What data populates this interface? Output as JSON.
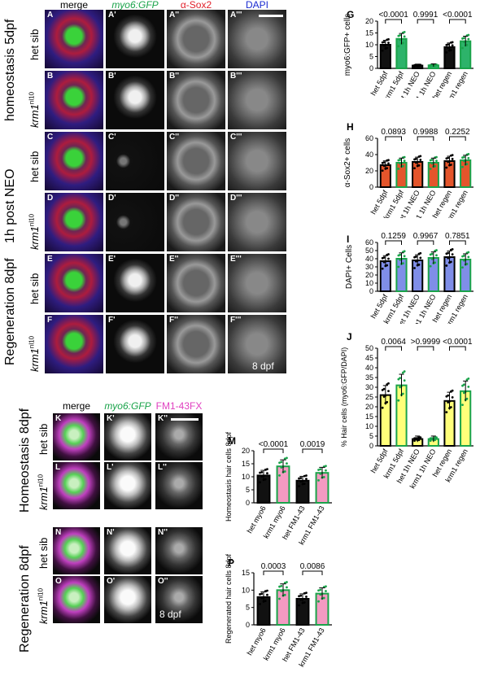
{
  "top": {
    "col_headers": [
      "merge",
      "myo6:GFP",
      "α-Sox2",
      "DAPI"
    ],
    "col_colors": [
      "#000000",
      "#1aa34a",
      "#e0202a",
      "#1a2bd0"
    ],
    "rows": [
      {
        "labels": [
          "A",
          "A'",
          "A''",
          "A'''"
        ],
        "row_label": "het sib"
      },
      {
        "labels": [
          "B",
          "B'",
          "B''",
          "B'''"
        ],
        "row_label": "krm1nl10"
      },
      {
        "labels": [
          "C",
          "C'",
          "C''",
          "C'''"
        ],
        "row_label": "het sib"
      },
      {
        "labels": [
          "D",
          "D'",
          "D''",
          "D'''"
        ],
        "row_label": "krm1nl10"
      },
      {
        "labels": [
          "E",
          "E'",
          "E''",
          "E'''"
        ],
        "row_label": "het sib"
      },
      {
        "labels": [
          "F",
          "F'",
          "F''",
          "F'''"
        ],
        "row_label": "krm1nl10"
      }
    ],
    "groups": [
      "homeostasis 5dpf",
      "1h post NEO",
      "Regeneration 8dpf"
    ],
    "stage": "8 dpf"
  },
  "bottom": {
    "col_headers": [
      "merge",
      "myo6:GFP",
      "FM1-43FX"
    ],
    "col_colors": [
      "#000000",
      "#1aa34a",
      "#e040c0"
    ],
    "rows": [
      {
        "labels": [
          "K",
          "K'",
          "K''"
        ],
        "row_label": "het sib"
      },
      {
        "labels": [
          "L",
          "L'",
          "L''"
        ],
        "row_label": "krm1nl10"
      },
      {
        "labels": [
          "N",
          "N'",
          "N''"
        ],
        "row_label": "het sib"
      },
      {
        "labels": [
          "O",
          "O'",
          "O''"
        ],
        "row_label": "krm1nl10"
      }
    ],
    "groups": [
      "Homeostasis 8dpf",
      "Regeneration 8dpf"
    ],
    "stage": "8 dpf"
  },
  "chart_data": [
    {
      "panel": "G",
      "type": "bar",
      "ylabel": "myo6:GFP+ cells",
      "ylim": [
        0,
        20
      ],
      "yticks": [
        0,
        5,
        10,
        15,
        20
      ],
      "categories": [
        "het 5dpf",
        "krm1 5dpf",
        "het 1h NEO",
        "krm1 1h NEO",
        "het regen",
        "krm1 regen"
      ],
      "values": [
        10,
        12.5,
        1.2,
        1.3,
        9,
        11.5
      ],
      "pvalues": [
        "<0.0001",
        "0.9991",
        "<0.0001"
      ]
    },
    {
      "panel": "H",
      "type": "bar",
      "ylabel": "α-Sox2+ cells",
      "ylim": [
        0,
        60
      ],
      "yticks": [
        0,
        20,
        40,
        60
      ],
      "categories": [
        "het 5dpf",
        "krm1 5dpf",
        "het 1h NEO",
        "krm1 1h NEO",
        "het regen",
        "krm1 regen"
      ],
      "values": [
        27,
        30,
        31,
        30,
        32,
        33
      ],
      "pvalues": [
        "0.0893",
        "0.9988",
        "0.2252"
      ]
    },
    {
      "panel": "I",
      "type": "bar",
      "ylabel": "DAPI+ Cells",
      "ylim": [
        0,
        60
      ],
      "yticks": [
        0,
        10,
        20,
        30,
        40,
        50,
        60
      ],
      "categories": [
        "het 5dpf",
        "krm1 5dpf",
        "het 1h NEO",
        "krm1 1h NEO",
        "het regen",
        "krm1 regen"
      ],
      "values": [
        37,
        40,
        38,
        41,
        42,
        39
      ],
      "pvalues": [
        "0.1259",
        "0.9967",
        "0.7851"
      ]
    },
    {
      "panel": "J",
      "type": "bar",
      "ylabel": "% Hair cells (myo6:GFP/DAPI)",
      "ylim": [
        0,
        50
      ],
      "yticks": [
        0,
        5,
        10,
        15,
        20,
        25,
        30,
        35,
        40,
        45,
        50
      ],
      "categories": [
        "het 5dpf",
        "krm1 5dpf",
        "het 1h NEO",
        "krm1 1h NEO",
        "het regen",
        "krm1 regen"
      ],
      "values": [
        26,
        31,
        3.5,
        3.5,
        23,
        28
      ],
      "pvalues": [
        "0.0064",
        ">0.9999",
        "<0.0001"
      ]
    },
    {
      "panel": "M",
      "type": "bar",
      "title": "Homeostasis hair cells 8dpf",
      "ylim": [
        0,
        20
      ],
      "yticks": [
        0,
        5,
        10,
        15,
        20
      ],
      "categories": [
        "het myo6",
        "krm1 myo6",
        "het FM1-43",
        "krm1 FM1-43"
      ],
      "values": [
        10.5,
        14,
        8.5,
        11.5
      ],
      "pvalues": [
        "<0.0001",
        "0.0019"
      ]
    },
    {
      "panel": "P",
      "type": "bar",
      "title": "Regenerated hair cells 8dpf",
      "ylim": [
        0,
        15
      ],
      "yticks": [
        0,
        5,
        10,
        15
      ],
      "categories": [
        "het myo6",
        "krm1 myo6",
        "het FM1-43",
        "krm1 FM1-43"
      ],
      "values": [
        8,
        10,
        7.5,
        9
      ],
      "pvalues": [
        "0.0003",
        "0.0086"
      ]
    }
  ],
  "colors": {
    "het": "#111111",
    "krm1_G": "#2db36a",
    "het_H": "#e4552b",
    "krm1_H": "#f07050",
    "I": "#7f8ee8",
    "J": "#ffff7a",
    "M": "#f49ac2",
    "P": "#f49ac2",
    "krm_border": "#1aa34a"
  }
}
